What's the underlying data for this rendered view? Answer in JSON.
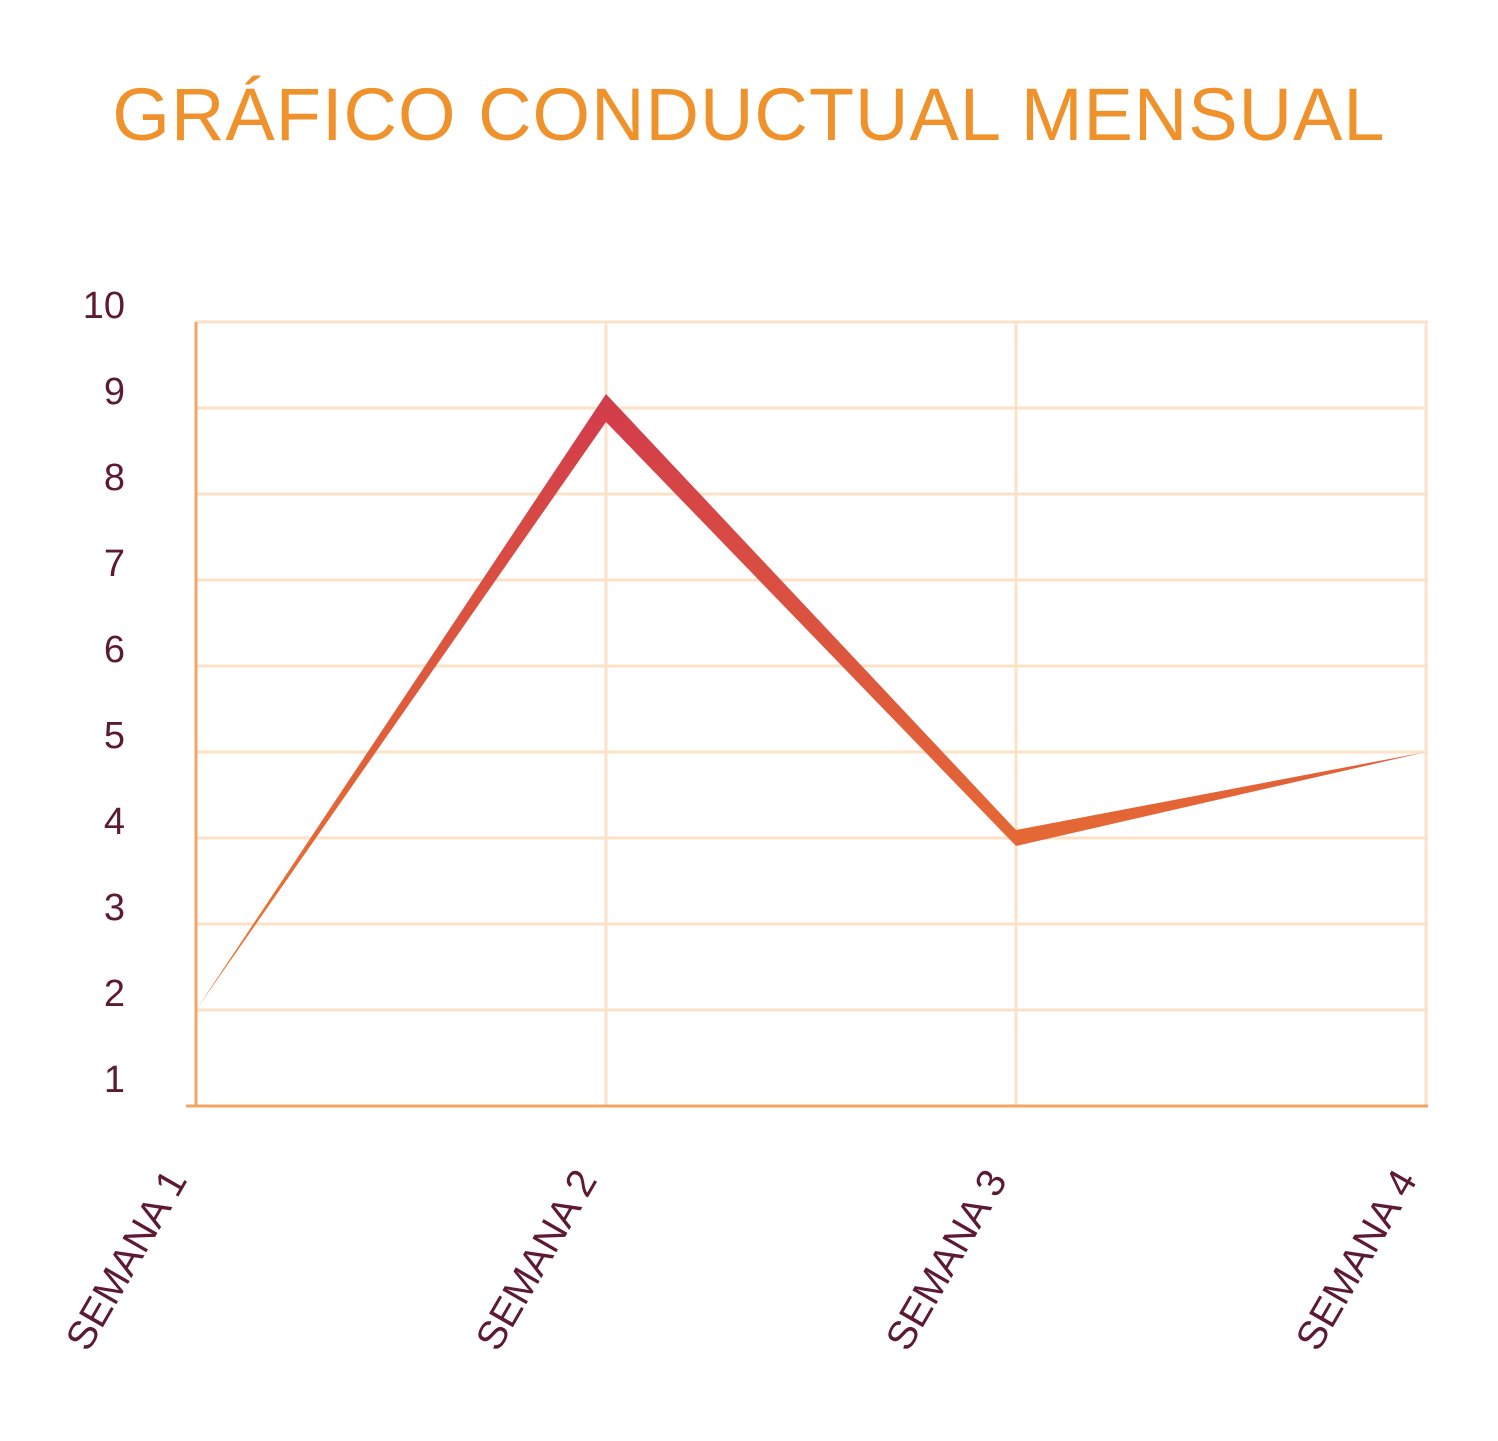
{
  "chart_data": {
    "type": "line",
    "title": "GRÁFICO CONDUCTUAL MENSUAL",
    "xlabel": "",
    "ylabel": "",
    "categories": [
      "SEMANA 1",
      "SEMANA 2",
      "SEMANA 3",
      "SEMANA 4"
    ],
    "y_ticks": [
      "1",
      "2",
      "3",
      "4",
      "5",
      "6",
      "7",
      "8",
      "9",
      "10"
    ],
    "ylim": [
      1,
      10
    ],
    "grid": true,
    "legend": "none",
    "series": [
      {
        "values": [
          2,
          9,
          4,
          5
        ]
      }
    ],
    "colors": {
      "title": "#F0922B",
      "tick_labels": "#5C1A33",
      "grid": "#FCE3C8",
      "axis": "#F1A663",
      "line_top": "#D13A4C",
      "line_bottom": "#EC7A2C"
    }
  }
}
